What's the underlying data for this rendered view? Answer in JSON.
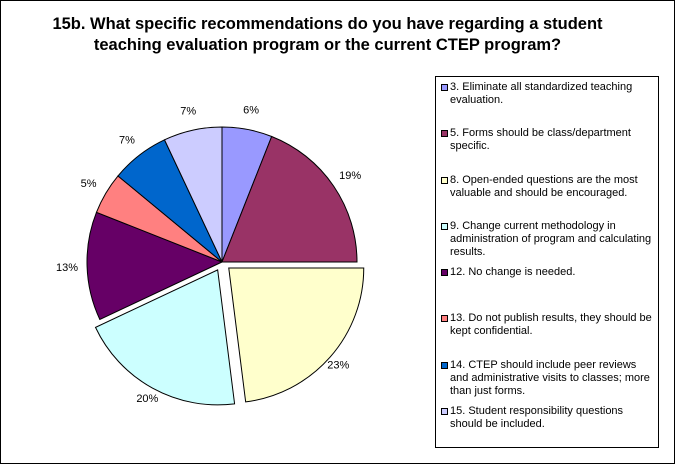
{
  "chart_data": {
    "type": "pie",
    "title": "15b. What specific recommendations do you have regarding a student teaching evaluation program or the current CTEP program?",
    "legend_position": "right",
    "slices": [
      {
        "label": "3. Eliminate all standardized teaching evaluation.",
        "value": 6,
        "display": "6%",
        "color": "#9999ff",
        "exploded": false
      },
      {
        "label": "5. Forms should be class/department specific.",
        "value": 19,
        "display": "19%",
        "color": "#993366",
        "exploded": false
      },
      {
        "label": "8.  Open-ended questions are the most valuable and should be encouraged.",
        "value": 23,
        "display": "23%",
        "color": "#ffffcc",
        "exploded": true
      },
      {
        "label": "9. Change current methodology in administration of program and calculating results.",
        "value": 20,
        "display": "20%",
        "color": "#ccffff",
        "exploded": true
      },
      {
        "label": "12. No change is needed.",
        "value": 13,
        "display": "13%",
        "color": "#660066",
        "exploded": false
      },
      {
        "label": "13. Do not publish results, they should be kept confidential.",
        "value": 5,
        "display": "5%",
        "color": "#ff8080",
        "exploded": false
      },
      {
        "label": "14.  CTEP should include peer reviews and administrative visits to classes; more than just forms.",
        "value": 7,
        "display": "7%",
        "color": "#0066cc",
        "exploded": false
      },
      {
        "label": "15.  Student responsibility questions should be included.",
        "value": 7,
        "display": "7%",
        "color": "#ccccff",
        "exploded": false
      }
    ]
  }
}
